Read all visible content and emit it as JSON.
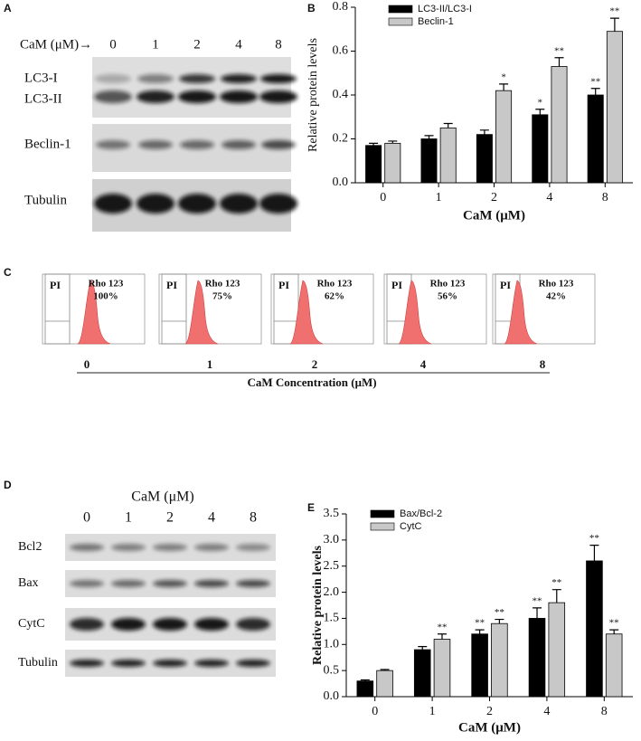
{
  "panel_labels": [
    "A",
    "B",
    "C",
    "D",
    "E"
  ],
  "blot_a": {
    "header": "CaM (μM)→",
    "lanes": [
      "0",
      "1",
      "2",
      "4",
      "8"
    ],
    "rows": [
      "LC3-I",
      "LC3-II",
      "Beclin-1",
      "Tubulin"
    ]
  },
  "flow_c": {
    "panels": [
      {
        "gate": "PI",
        "label": "Rho 123",
        "percent": "100%",
        "concentration": "0"
      },
      {
        "gate": "PI",
        "label": "Rho 123",
        "percent": "75%",
        "concentration": "1"
      },
      {
        "gate": "PI",
        "label": "Rho 123",
        "percent": "62%",
        "concentration": "2"
      },
      {
        "gate": "PI",
        "label": "Rho 123",
        "percent": "56%",
        "concentration": "4"
      },
      {
        "gate": "PI",
        "label": "Rho 123",
        "percent": "42%",
        "concentration": "8"
      }
    ],
    "x_label": "CaM Concentration  (μM)"
  },
  "blot_d": {
    "header": "CaM (μM)",
    "lanes": [
      "0",
      "1",
      "2",
      "4",
      "8"
    ],
    "rows": [
      "Bcl2",
      "Bax",
      "CytC",
      "Tubulin"
    ]
  },
  "chart_data": [
    {
      "type": "bar",
      "categories": [
        "0",
        "1",
        "2",
        "4",
        "8"
      ],
      "x_label": "CaM (μM)",
      "y_label": "Relative protein levels",
      "ylim": [
        0,
        0.8
      ],
      "yticks": [
        {
          "value": 0,
          "label": "0.0"
        },
        0.2,
        0.4,
        0.6,
        0.8
      ],
      "series": [
        {
          "name": "LC3-II/LC3-I",
          "color": "#000000",
          "values": [
            0.17,
            0.2,
            0.22,
            0.31,
            0.4
          ],
          "errors": [
            0.01,
            0.015,
            0.02,
            0.025,
            0.03
          ],
          "annotations": [
            null,
            null,
            null,
            "*",
            "**"
          ]
        },
        {
          "name": "Beclin-1",
          "color": "#c8c8c8",
          "values": [
            0.18,
            0.25,
            0.42,
            0.53,
            0.69
          ],
          "errors": [
            0.01,
            0.02,
            0.03,
            0.04,
            0.06
          ],
          "annotations": [
            null,
            null,
            "*",
            "**",
            "**"
          ]
        }
      ]
    },
    {
      "type": "bar",
      "categories": [
        "0",
        "1",
        "2",
        "4",
        "8"
      ],
      "x_label": "CaM (μM)",
      "y_label": "Relative protein levels",
      "ylim": [
        0,
        3.5
      ],
      "yticks": [
        {
          "value": 0,
          "label": "0.0"
        },
        0.5,
        {
          "value": 1,
          "label": "1.0"
        },
        1.5,
        {
          "value": 2,
          "label": "2.0"
        },
        2.5,
        {
          "value": 3,
          "label": "3.0"
        },
        3.5
      ],
      "series": [
        {
          "name": "Bax/Bcl-2",
          "color": "#000000",
          "values": [
            0.3,
            0.9,
            1.2,
            1.5,
            2.6
          ],
          "errors": [
            0.02,
            0.06,
            0.08,
            0.2,
            0.3
          ],
          "annotations": [
            null,
            null,
            "**",
            "**",
            "**"
          ]
        },
        {
          "name": "CytC",
          "color": "#c8c8c8",
          "values": [
            0.5,
            1.1,
            1.4,
            1.8,
            1.2
          ],
          "errors": [
            0.02,
            0.1,
            0.08,
            0.25,
            0.08
          ],
          "annotations": [
            null,
            "**",
            "**",
            "**",
            "**"
          ]
        }
      ]
    }
  ]
}
